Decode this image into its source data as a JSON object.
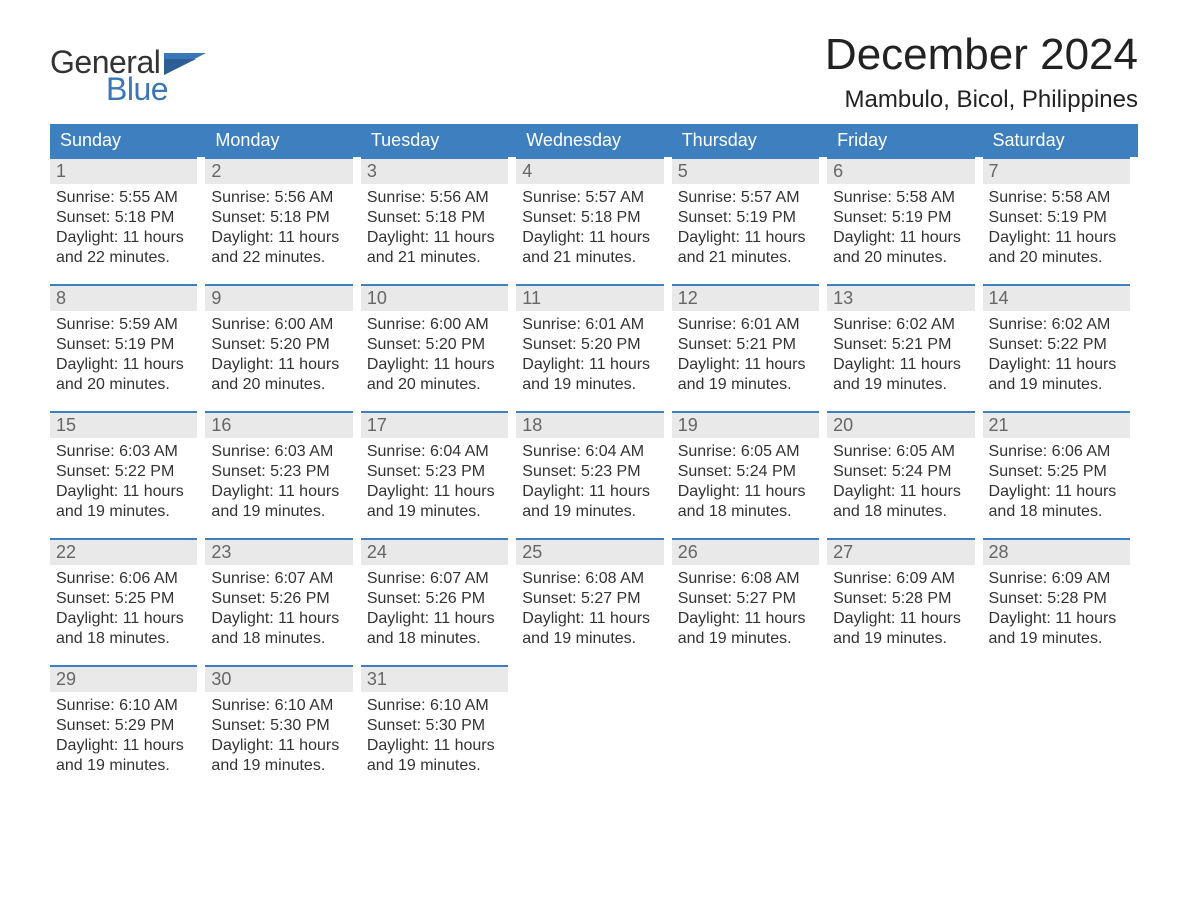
{
  "brand": {
    "word1": "General",
    "word2": "Blue"
  },
  "title": "December 2024",
  "location": "Mambulo, Bicol, Philippines",
  "colors": {
    "header_blue": "#3d7fbf",
    "row_border": "#3d7fbf",
    "daynum_bg": "#e9e9e9",
    "brand_blue": "#3a77b8",
    "background": "#ffffff",
    "text": "#333333"
  },
  "weekdays": [
    "Sunday",
    "Monday",
    "Tuesday",
    "Wednesday",
    "Thursday",
    "Friday",
    "Saturday"
  ],
  "weeks": [
    [
      {
        "n": "1",
        "sr": "Sunrise: 5:55 AM",
        "ss": "Sunset: 5:18 PM",
        "d1": "Daylight: 11 hours",
        "d2": "and 22 minutes."
      },
      {
        "n": "2",
        "sr": "Sunrise: 5:56 AM",
        "ss": "Sunset: 5:18 PM",
        "d1": "Daylight: 11 hours",
        "d2": "and 22 minutes."
      },
      {
        "n": "3",
        "sr": "Sunrise: 5:56 AM",
        "ss": "Sunset: 5:18 PM",
        "d1": "Daylight: 11 hours",
        "d2": "and 21 minutes."
      },
      {
        "n": "4",
        "sr": "Sunrise: 5:57 AM",
        "ss": "Sunset: 5:18 PM",
        "d1": "Daylight: 11 hours",
        "d2": "and 21 minutes."
      },
      {
        "n": "5",
        "sr": "Sunrise: 5:57 AM",
        "ss": "Sunset: 5:19 PM",
        "d1": "Daylight: 11 hours",
        "d2": "and 21 minutes."
      },
      {
        "n": "6",
        "sr": "Sunrise: 5:58 AM",
        "ss": "Sunset: 5:19 PM",
        "d1": "Daylight: 11 hours",
        "d2": "and 20 minutes."
      },
      {
        "n": "7",
        "sr": "Sunrise: 5:58 AM",
        "ss": "Sunset: 5:19 PM",
        "d1": "Daylight: 11 hours",
        "d2": "and 20 minutes."
      }
    ],
    [
      {
        "n": "8",
        "sr": "Sunrise: 5:59 AM",
        "ss": "Sunset: 5:19 PM",
        "d1": "Daylight: 11 hours",
        "d2": "and 20 minutes."
      },
      {
        "n": "9",
        "sr": "Sunrise: 6:00 AM",
        "ss": "Sunset: 5:20 PM",
        "d1": "Daylight: 11 hours",
        "d2": "and 20 minutes."
      },
      {
        "n": "10",
        "sr": "Sunrise: 6:00 AM",
        "ss": "Sunset: 5:20 PM",
        "d1": "Daylight: 11 hours",
        "d2": "and 20 minutes."
      },
      {
        "n": "11",
        "sr": "Sunrise: 6:01 AM",
        "ss": "Sunset: 5:20 PM",
        "d1": "Daylight: 11 hours",
        "d2": "and 19 minutes."
      },
      {
        "n": "12",
        "sr": "Sunrise: 6:01 AM",
        "ss": "Sunset: 5:21 PM",
        "d1": "Daylight: 11 hours",
        "d2": "and 19 minutes."
      },
      {
        "n": "13",
        "sr": "Sunrise: 6:02 AM",
        "ss": "Sunset: 5:21 PM",
        "d1": "Daylight: 11 hours",
        "d2": "and 19 minutes."
      },
      {
        "n": "14",
        "sr": "Sunrise: 6:02 AM",
        "ss": "Sunset: 5:22 PM",
        "d1": "Daylight: 11 hours",
        "d2": "and 19 minutes."
      }
    ],
    [
      {
        "n": "15",
        "sr": "Sunrise: 6:03 AM",
        "ss": "Sunset: 5:22 PM",
        "d1": "Daylight: 11 hours",
        "d2": "and 19 minutes."
      },
      {
        "n": "16",
        "sr": "Sunrise: 6:03 AM",
        "ss": "Sunset: 5:23 PM",
        "d1": "Daylight: 11 hours",
        "d2": "and 19 minutes."
      },
      {
        "n": "17",
        "sr": "Sunrise: 6:04 AM",
        "ss": "Sunset: 5:23 PM",
        "d1": "Daylight: 11 hours",
        "d2": "and 19 minutes."
      },
      {
        "n": "18",
        "sr": "Sunrise: 6:04 AM",
        "ss": "Sunset: 5:23 PM",
        "d1": "Daylight: 11 hours",
        "d2": "and 19 minutes."
      },
      {
        "n": "19",
        "sr": "Sunrise: 6:05 AM",
        "ss": "Sunset: 5:24 PM",
        "d1": "Daylight: 11 hours",
        "d2": "and 18 minutes."
      },
      {
        "n": "20",
        "sr": "Sunrise: 6:05 AM",
        "ss": "Sunset: 5:24 PM",
        "d1": "Daylight: 11 hours",
        "d2": "and 18 minutes."
      },
      {
        "n": "21",
        "sr": "Sunrise: 6:06 AM",
        "ss": "Sunset: 5:25 PM",
        "d1": "Daylight: 11 hours",
        "d2": "and 18 minutes."
      }
    ],
    [
      {
        "n": "22",
        "sr": "Sunrise: 6:06 AM",
        "ss": "Sunset: 5:25 PM",
        "d1": "Daylight: 11 hours",
        "d2": "and 18 minutes."
      },
      {
        "n": "23",
        "sr": "Sunrise: 6:07 AM",
        "ss": "Sunset: 5:26 PM",
        "d1": "Daylight: 11 hours",
        "d2": "and 18 minutes."
      },
      {
        "n": "24",
        "sr": "Sunrise: 6:07 AM",
        "ss": "Sunset: 5:26 PM",
        "d1": "Daylight: 11 hours",
        "d2": "and 18 minutes."
      },
      {
        "n": "25",
        "sr": "Sunrise: 6:08 AM",
        "ss": "Sunset: 5:27 PM",
        "d1": "Daylight: 11 hours",
        "d2": "and 19 minutes."
      },
      {
        "n": "26",
        "sr": "Sunrise: 6:08 AM",
        "ss": "Sunset: 5:27 PM",
        "d1": "Daylight: 11 hours",
        "d2": "and 19 minutes."
      },
      {
        "n": "27",
        "sr": "Sunrise: 6:09 AM",
        "ss": "Sunset: 5:28 PM",
        "d1": "Daylight: 11 hours",
        "d2": "and 19 minutes."
      },
      {
        "n": "28",
        "sr": "Sunrise: 6:09 AM",
        "ss": "Sunset: 5:28 PM",
        "d1": "Daylight: 11 hours",
        "d2": "and 19 minutes."
      }
    ],
    [
      {
        "n": "29",
        "sr": "Sunrise: 6:10 AM",
        "ss": "Sunset: 5:29 PM",
        "d1": "Daylight: 11 hours",
        "d2": "and 19 minutes."
      },
      {
        "n": "30",
        "sr": "Sunrise: 6:10 AM",
        "ss": "Sunset: 5:30 PM",
        "d1": "Daylight: 11 hours",
        "d2": "and 19 minutes."
      },
      {
        "n": "31",
        "sr": "Sunrise: 6:10 AM",
        "ss": "Sunset: 5:30 PM",
        "d1": "Daylight: 11 hours",
        "d2": "and 19 minutes."
      },
      null,
      null,
      null,
      null
    ]
  ]
}
